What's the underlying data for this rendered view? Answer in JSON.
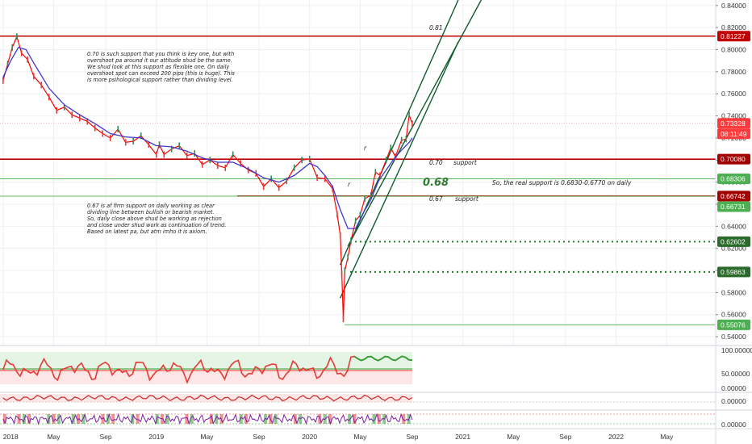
{
  "chart_data": {
    "type": "line",
    "title": "",
    "price_axis": {
      "ticks": [
        "0.84000",
        "0.82000",
        "0.80000",
        "0.78000",
        "0.76000",
        "0.74000",
        "0.72000",
        "0.70000",
        "0.68000",
        "0.66000",
        "0.64000",
        "0.62000",
        "0.60000",
        "0.58000",
        "0.56000",
        "0.54000"
      ],
      "tick_values": [
        0.84,
        0.82,
        0.8,
        0.78,
        0.76,
        0.74,
        0.72,
        0.7,
        0.68,
        0.66,
        0.64,
        0.62,
        0.6,
        0.58,
        0.56,
        0.54
      ],
      "ylim": [
        0.532,
        0.845
      ]
    },
    "time_axis": {
      "ticks": [
        "2018",
        "May",
        "Sep",
        "2019",
        "May",
        "Sep",
        "2020",
        "May",
        "Sep",
        "2021",
        "May",
        "Sep",
        "2022",
        "May"
      ],
      "tick_values": [
        2018.0,
        2018.33,
        2018.67,
        2019.0,
        2019.33,
        2019.67,
        2020.0,
        2020.33,
        2020.67,
        2021.0,
        2021.33,
        2021.67,
        2022.0,
        2022.33
      ],
      "xlim": [
        2017.98,
        2022.65
      ]
    },
    "price_series": {
      "name": "",
      "color": "#ff0000",
      "x": [
        2018.0,
        2018.03,
        2018.06,
        2018.09,
        2018.12,
        2018.16,
        2018.2,
        2018.25,
        2018.3,
        2018.35,
        2018.4,
        2018.45,
        2018.5,
        2018.55,
        2018.6,
        2018.65,
        2018.7,
        2018.75,
        2018.8,
        2018.85,
        2018.9,
        2018.95,
        2019.0,
        2019.02,
        2019.05,
        2019.1,
        2019.15,
        2019.2,
        2019.25,
        2019.3,
        2019.35,
        2019.4,
        2019.45,
        2019.5,
        2019.55,
        2019.6,
        2019.65,
        2019.7,
        2019.75,
        2019.8,
        2019.85,
        2019.9,
        2019.95,
        2020.0,
        2020.05,
        2020.1,
        2020.15,
        2020.18,
        2020.2,
        2020.21,
        2020.22,
        2020.23,
        2020.25,
        2020.27,
        2020.3,
        2020.33,
        2020.36,
        2020.4,
        2020.43,
        2020.46,
        2020.5,
        2020.53,
        2020.56,
        2020.6,
        2020.63,
        2020.65,
        2020.67
      ],
      "values": [
        0.772,
        0.787,
        0.802,
        0.812,
        0.797,
        0.791,
        0.776,
        0.768,
        0.757,
        0.745,
        0.748,
        0.741,
        0.738,
        0.735,
        0.729,
        0.724,
        0.72,
        0.728,
        0.716,
        0.717,
        0.722,
        0.714,
        0.705,
        0.714,
        0.705,
        0.71,
        0.713,
        0.704,
        0.706,
        0.696,
        0.7,
        0.695,
        0.693,
        0.705,
        0.697,
        0.691,
        0.688,
        0.676,
        0.683,
        0.675,
        0.681,
        0.693,
        0.7,
        0.701,
        0.684,
        0.683,
        0.674,
        0.651,
        0.632,
        0.597,
        0.556,
        0.6,
        0.612,
        0.627,
        0.645,
        0.65,
        0.665,
        0.668,
        0.689,
        0.686,
        0.7,
        0.711,
        0.703,
        0.718,
        0.719,
        0.741,
        0.733
      ]
    },
    "moving_average": {
      "name": "",
      "color": "#3f37c9",
      "x": [
        2018.0,
        2018.05,
        2018.1,
        2018.15,
        2018.2,
        2018.3,
        2018.4,
        2018.5,
        2018.6,
        2018.7,
        2018.8,
        2018.9,
        2019.0,
        2019.1,
        2019.2,
        2019.3,
        2019.4,
        2019.5,
        2019.6,
        2019.7,
        2019.8,
        2019.9,
        2020.0,
        2020.05,
        2020.1,
        2020.15,
        2020.2,
        2020.25,
        2020.3,
        2020.35,
        2020.4,
        2020.45,
        2020.5,
        2020.55,
        2020.6,
        2020.65,
        2020.67
      ],
      "values": [
        0.775,
        0.79,
        0.802,
        0.8,
        0.788,
        0.765,
        0.75,
        0.741,
        0.733,
        0.724,
        0.721,
        0.72,
        0.713,
        0.712,
        0.708,
        0.702,
        0.698,
        0.698,
        0.692,
        0.684,
        0.68,
        0.686,
        0.697,
        0.694,
        0.686,
        0.676,
        0.655,
        0.638,
        0.638,
        0.652,
        0.664,
        0.681,
        0.691,
        0.701,
        0.709,
        0.716,
        0.72
      ]
    },
    "horizontal_levels": [
      {
        "price": 0.81227,
        "label": "0.81227",
        "color": "#c00000"
      },
      {
        "price": 0.7008,
        "label": "0.70080",
        "color": "#c00000"
      },
      {
        "price": 0.68306,
        "label": "0.68306",
        "color": "#5fb85f"
      },
      {
        "price": 0.66742,
        "label": "0.66742",
        "color": "#c00000"
      },
      {
        "price": 0.66731,
        "label": "0.66731",
        "color": "#5fb85f"
      },
      {
        "price": 0.62602,
        "label": "0.62602",
        "color": "#1e7f1e",
        "dotted": true
      },
      {
        "price": 0.59863,
        "label": "0.59863",
        "color": "#1e7f1e",
        "dotted": true
      },
      {
        "price": 0.55076,
        "label": "0.55076",
        "color": "#5fb85f"
      }
    ],
    "current_price": {
      "label": "0.73328",
      "countdown": "08:11:49",
      "color": "#ff3b3b"
    },
    "channel": {
      "color": "#0f5c2e"
    },
    "annotations": {
      "level_081": "0.81",
      "support_070_value": "0.70",
      "support_070_word": "support",
      "big_068": "0.68",
      "real_support": "So, the real support is 0.6830-0.6770 on daily",
      "support_067_value": "0.67",
      "support_067_word": "support",
      "r1": "r",
      "r2": "r",
      "note_top": [
        "0.70 is such support that you think is key one, but with",
        "overshoot pa around it our attitude shud be the same.",
        "We shud look at this support as flexible one. On daily",
        "overshoot spot can exceed 200 pips (this is huge). This",
        "is more psihological support rather than dividing level."
      ],
      "note_bottom": [
        "0.67 is af firm support on daily working as clear",
        "dividing line between bullish or bearish market.",
        "So, daily close above shud be working as rejection",
        "and close under shud work as continuation of trend.",
        "Based on latest pa, but atm imho it is axiom."
      ]
    },
    "indicators": [
      {
        "name": "",
        "ticks": [
          "100.00000",
          "50.00000",
          "0.00000"
        ],
        "line_color": "#e53935",
        "rising_color": "#2e9e2e"
      },
      {
        "name": "",
        "ticks": [
          "0.00000"
        ],
        "line_color": "#c62828"
      },
      {
        "name": "",
        "ticks": [
          "0.00000"
        ],
        "line_color": "#7b1fa2"
      }
    ]
  }
}
